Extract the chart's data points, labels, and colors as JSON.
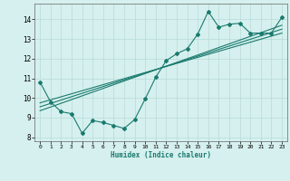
{
  "xlabel": "Humidex (Indice chaleur)",
  "ylabel": "",
  "bg_color": "#d5f0ee",
  "line_color": "#1a7a6e",
  "grid_color": "#b8dbd8",
  "xlim": [
    -0.5,
    23.5
  ],
  "ylim": [
    7.8,
    14.8
  ],
  "xticks": [
    0,
    1,
    2,
    3,
    4,
    5,
    6,
    7,
    8,
    9,
    10,
    11,
    12,
    13,
    14,
    15,
    16,
    17,
    18,
    19,
    20,
    21,
    22,
    23
  ],
  "yticks": [
    8,
    9,
    10,
    11,
    12,
    13,
    14
  ],
  "zigzag_x": [
    0,
    1,
    2,
    3,
    4,
    5,
    6,
    7,
    8,
    9,
    10,
    11,
    12,
    13,
    14,
    15,
    16,
    17,
    18,
    19,
    20,
    21,
    22,
    23
  ],
  "zigzag_y": [
    10.8,
    9.8,
    9.3,
    9.2,
    8.2,
    8.85,
    8.75,
    8.6,
    8.45,
    8.9,
    9.95,
    11.05,
    11.9,
    12.25,
    12.5,
    13.25,
    14.4,
    13.6,
    13.75,
    13.8,
    13.3,
    13.3,
    13.3,
    14.1
  ],
  "line1_x": [
    0,
    23
  ],
  "line1_y": [
    9.75,
    13.3
  ],
  "line2_x": [
    0,
    23
  ],
  "line2_y": [
    9.55,
    13.5
  ],
  "line3_x": [
    0,
    23
  ],
  "line3_y": [
    9.35,
    13.7
  ]
}
